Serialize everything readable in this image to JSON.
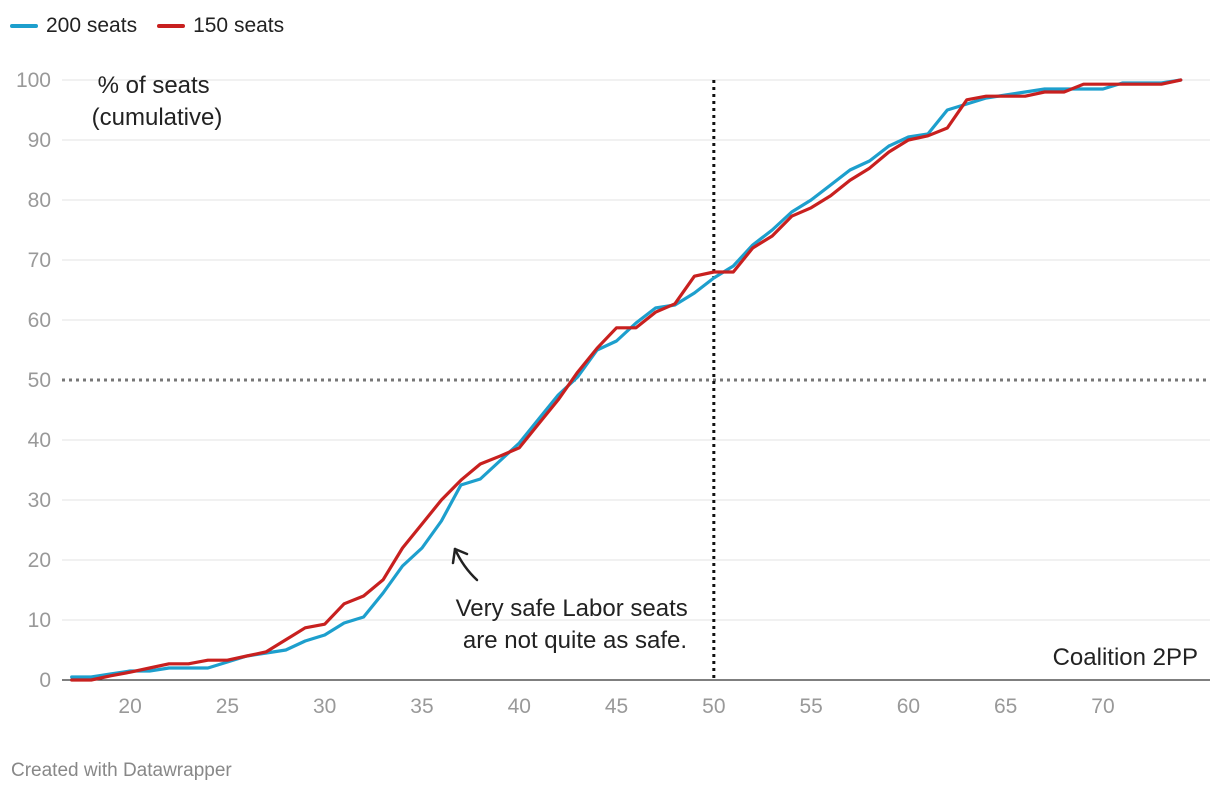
{
  "legend": [
    {
      "name": "200 seats",
      "color": "#1d9fcd"
    },
    {
      "name": "150 seats",
      "color": "#c8201f"
    }
  ],
  "credit": "Created with Datawrapper",
  "chart_data": {
    "type": "line",
    "ylabel_lines": [
      "% of seats",
      "(cumulative)"
    ],
    "xlabel": "Coalition 2PP",
    "annotation_lines": [
      "Very safe Labor seats",
      "are not quite as safe."
    ],
    "xlim": [
      16.5,
      75.5
    ],
    "ylim": [
      0,
      100
    ],
    "x_ticks": [
      20,
      25,
      30,
      35,
      40,
      45,
      50,
      55,
      60,
      65,
      70
    ],
    "y_ticks": [
      0,
      10,
      20,
      30,
      40,
      50,
      60,
      70,
      80,
      90,
      100
    ],
    "reference_lines": {
      "x": 50,
      "y": 50
    },
    "grid": true,
    "legend_position": "top-left",
    "series": [
      {
        "name": "200 seats",
        "color": "#1d9fcd",
        "points": [
          [
            17,
            0.5
          ],
          [
            18,
            0.5
          ],
          [
            19,
            1
          ],
          [
            20,
            1.5
          ],
          [
            21,
            1.5
          ],
          [
            22,
            2
          ],
          [
            23,
            2
          ],
          [
            24,
            2
          ],
          [
            25,
            3
          ],
          [
            26,
            4
          ],
          [
            27,
            4.5
          ],
          [
            28,
            5
          ],
          [
            29,
            6.5
          ],
          [
            30,
            7.5
          ],
          [
            31,
            9.5
          ],
          [
            32,
            10.5
          ],
          [
            33,
            14.5
          ],
          [
            34,
            19
          ],
          [
            35,
            22
          ],
          [
            36,
            26.5
          ],
          [
            37,
            32.5
          ],
          [
            38,
            33.5
          ],
          [
            39,
            36.5
          ],
          [
            40,
            39.5
          ],
          [
            41,
            43.5
          ],
          [
            42,
            47.5
          ],
          [
            43,
            50.5
          ],
          [
            44,
            55
          ],
          [
            45,
            56.5
          ],
          [
            46,
            59.5
          ],
          [
            47,
            62
          ],
          [
            48,
            62.5
          ],
          [
            49,
            64.5
          ],
          [
            50,
            67
          ],
          [
            51,
            69
          ],
          [
            52,
            72.5
          ],
          [
            53,
            75
          ],
          [
            54,
            78
          ],
          [
            55,
            80
          ],
          [
            56,
            82.5
          ],
          [
            57,
            85
          ],
          [
            58,
            86.5
          ],
          [
            59,
            89
          ],
          [
            60,
            90.5
          ],
          [
            61,
            91
          ],
          [
            62,
            95
          ],
          [
            63,
            96
          ],
          [
            64,
            97
          ],
          [
            65,
            97.5
          ],
          [
            66,
            98
          ],
          [
            67,
            98.5
          ],
          [
            68,
            98.5
          ],
          [
            69,
            98.5
          ],
          [
            70,
            98.5
          ],
          [
            71,
            99.5
          ],
          [
            72,
            99.5
          ],
          [
            73,
            99.5
          ],
          [
            74,
            100
          ]
        ]
      },
      {
        "name": "150 seats",
        "color": "#c8201f",
        "points": [
          [
            17,
            0
          ],
          [
            18,
            0
          ],
          [
            19,
            0.7
          ],
          [
            20,
            1.3
          ],
          [
            21,
            2
          ],
          [
            22,
            2.7
          ],
          [
            23,
            2.7
          ],
          [
            24,
            3.3
          ],
          [
            25,
            3.3
          ],
          [
            26,
            4
          ],
          [
            27,
            4.7
          ],
          [
            28,
            6.7
          ],
          [
            29,
            8.7
          ],
          [
            30,
            9.3
          ],
          [
            31,
            12.7
          ],
          [
            32,
            14
          ],
          [
            33,
            16.7
          ],
          [
            34,
            22
          ],
          [
            35,
            26
          ],
          [
            36,
            30
          ],
          [
            37,
            33.3
          ],
          [
            38,
            36
          ],
          [
            39,
            37.3
          ],
          [
            40,
            38.7
          ],
          [
            41,
            42.7
          ],
          [
            42,
            46.7
          ],
          [
            43,
            51.3
          ],
          [
            44,
            55.3
          ],
          [
            45,
            58.7
          ],
          [
            46,
            58.7
          ],
          [
            47,
            61.3
          ],
          [
            48,
            62.7
          ],
          [
            49,
            67.3
          ],
          [
            50,
            68
          ],
          [
            51,
            68
          ],
          [
            52,
            72
          ],
          [
            53,
            74
          ],
          [
            54,
            77.3
          ],
          [
            55,
            78.7
          ],
          [
            56,
            80.7
          ],
          [
            57,
            83.3
          ],
          [
            58,
            85.3
          ],
          [
            59,
            88
          ],
          [
            60,
            90
          ],
          [
            61,
            90.7
          ],
          [
            62,
            92
          ],
          [
            63,
            96.7
          ],
          [
            64,
            97.3
          ],
          [
            65,
            97.3
          ],
          [
            66,
            97.3
          ],
          [
            67,
            98
          ],
          [
            68,
            98
          ],
          [
            69,
            99.3
          ],
          [
            70,
            99.3
          ],
          [
            71,
            99.3
          ],
          [
            72,
            99.3
          ],
          [
            73,
            99.3
          ],
          [
            74,
            100
          ]
        ]
      }
    ]
  }
}
